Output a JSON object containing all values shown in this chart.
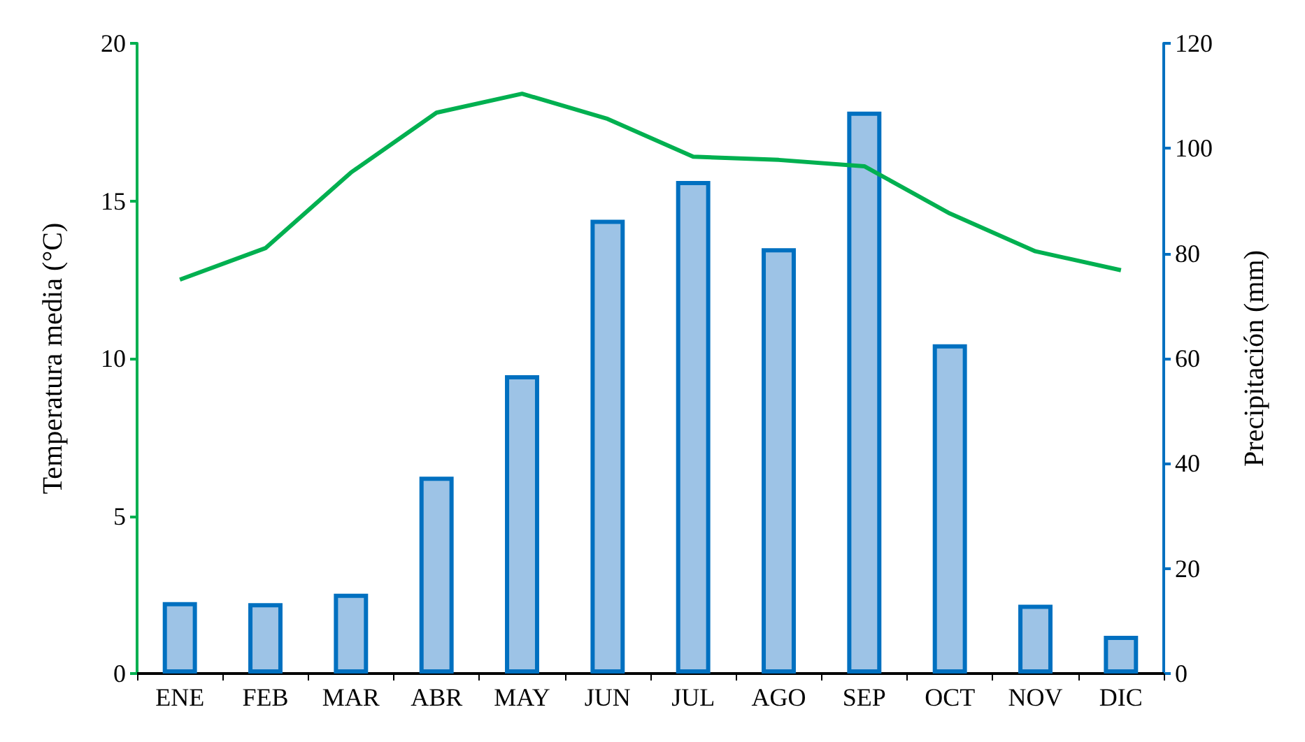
{
  "chart_data": {
    "type": "bar",
    "categories": [
      "ENE",
      "FEB",
      "MAR",
      "ABR",
      "MAY",
      "JUN",
      "JUL",
      "AGO",
      "SEP",
      "OCT",
      "NOV",
      "DIC"
    ],
    "ylabel": "Temperatura media (°C)",
    "y2label": "Precipitación (mm)",
    "ylim": [
      0,
      20
    ],
    "yticks": [
      0,
      5,
      10,
      15,
      20
    ],
    "y2lim": [
      0,
      120
    ],
    "y2ticks": [
      0,
      20,
      40,
      60,
      80,
      100,
      120
    ],
    "grid": false,
    "series": [
      {
        "axis": "y2",
        "color": "#9dc3e6",
        "values": [
          13.6,
          13.4,
          15.2,
          37.5,
          56.8,
          86.4,
          93.8,
          81,
          107,
          62.7,
          13.1,
          7.2
        ]
      },
      {
        "type": "line",
        "color": "#00b050",
        "marker": "none",
        "line_style": "solid",
        "values": [
          12.5,
          13.5,
          15.9,
          17.8,
          18.4,
          17.6,
          16.4,
          16.3,
          16.1,
          14.6,
          13.4,
          12.8
        ]
      }
    ]
  }
}
